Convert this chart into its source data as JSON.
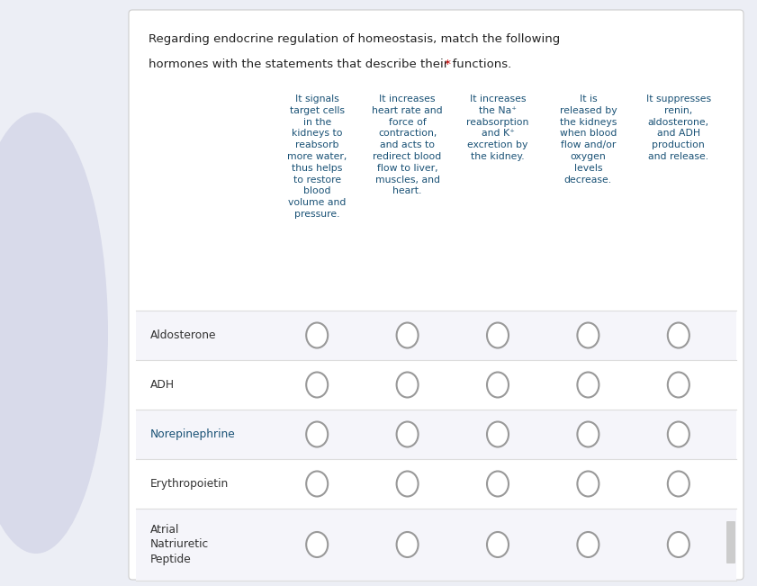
{
  "title_line1": "Regarding endocrine regulation of homeostasis, match the following",
  "title_line2": "hormones with the statements that describe their functions.",
  "title_asterisk": " *",
  "bg_color": "#eceef5",
  "card_color": "#ffffff",
  "title_color": "#222222",
  "asterisk_color": "#cc0000",
  "col_headers": [
    "It signals\ntarget cells\nin the\nkidneys to\nreabsorb\nmore water,\nthus helps\nto restore\nblood\nvolume and\npressure.",
    "It increases\nheart rate and\nforce of\ncontraction,\nand acts to\nredirect blood\nflow to liver,\nmuscles, and\nheart.",
    "It increases\nthe Na⁺\nreabsorption\nand K⁺\nexcretion by\nthe kidney.",
    "It is\nreleased by\nthe kidneys\nwhen blood\nflow and/or\noxygen\nlevels\ndecrease.",
    "It suppresses\nrenin,\naldosterone,\nand ADH\nproduction\nand release."
  ],
  "col_header_color": "#1a5276",
  "row_labels": [
    "Aldosterone",
    "ADH",
    "Norepinephrine",
    "Erythropoietin",
    "Atrial\nNatriuretic\nPeptide"
  ],
  "row_label_colors": [
    "#333333",
    "#333333",
    "#1a5276",
    "#333333",
    "#333333"
  ],
  "n_rows": 5,
  "n_cols": 5,
  "row_bg_colors": [
    "#f5f5fa",
    "#ffffff",
    "#f5f5fa",
    "#ffffff",
    "#f5f5fa"
  ],
  "divider_color": "#dddddd",
  "circle_edge_color": "#999999",
  "scroll_color": "#cccccc"
}
